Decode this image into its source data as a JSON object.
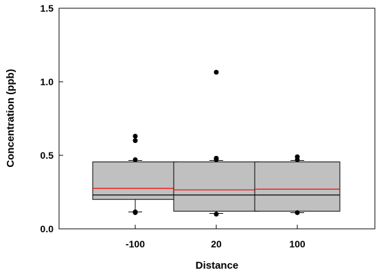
{
  "chart_data": {
    "type": "box",
    "xlabel": "Distance",
    "ylabel": "Concentration (ppb)",
    "ylim": [
      0.0,
      1.5
    ],
    "yticks": [
      0.0,
      0.5,
      1.0,
      1.5
    ],
    "ytick_labels": [
      "0.0",
      "0.5",
      "1.0",
      "1.5"
    ],
    "categories": [
      "-100",
      "20",
      "100"
    ],
    "grid": false,
    "legend": "none",
    "colors": {
      "box_fill": "#c0c0c0",
      "mean_line": "#ff0000",
      "median_line": "#000000",
      "outlier": "#000000"
    },
    "boxes": [
      {
        "category": "-100",
        "q1": 0.2,
        "median": 0.23,
        "mean": 0.275,
        "q3": 0.455,
        "whisker_low": 0.115,
        "whisker_high": 0.465,
        "outliers": [
          0.63,
          0.6,
          0.47,
          0.115,
          0.11
        ]
      },
      {
        "category": "20",
        "q1": 0.12,
        "median": 0.23,
        "mean": 0.265,
        "q3": 0.455,
        "whisker_low": 0.105,
        "whisker_high": 0.465,
        "outliers": [
          1.065,
          0.48,
          0.47,
          0.1
        ]
      },
      {
        "category": "100",
        "q1": 0.12,
        "median": 0.23,
        "mean": 0.27,
        "q3": 0.455,
        "whisker_low": 0.11,
        "whisker_high": 0.465,
        "outliers": [
          0.49,
          0.47,
          0.11
        ]
      }
    ]
  }
}
